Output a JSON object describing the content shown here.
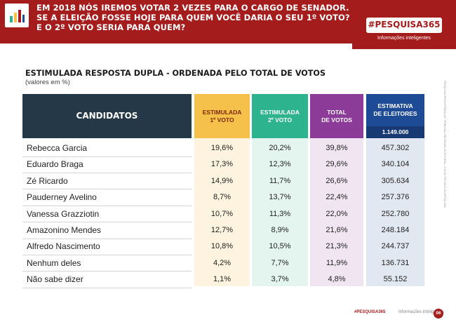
{
  "header": {
    "question_lines": [
      "EM 2018 NÓS IREMOS VOTAR 2 VEZES PARA O CARGO DE SENADOR.",
      "SE A ELEIÇÃO FOSSE HOJE PARA QUEM VOCÊ DARIA O SEU 1º VOTO?",
      "E O 2º VOTO SERIA PARA QUEM?"
    ],
    "icon": "bar-chart-icon",
    "band_color": "#a51c1c"
  },
  "brand": {
    "name": "#PESQUISA365",
    "tagline": "Informações inteligentes"
  },
  "table": {
    "title": "ESTIMULADA RESPOSTA DUPLA - ORDENADA PELO TOTAL DE VOTOS",
    "subtitle": "(valores em %)",
    "headers": {
      "candidates": "CANDIDATOS",
      "est1_line1": "ESTIMULADA",
      "est1_line2": "1º VOTO",
      "est2_line1": "ESTIMULADA",
      "est2_line2": "2º VOTO",
      "total_line1": "TOTAL",
      "total_line2": "DE VOTOS",
      "estim_line1": "ESTIMATIVA",
      "estim_line2": "DE ELEITORES",
      "electorate": "1.149.000"
    },
    "rows": [
      {
        "name": "Rebecca Garcia",
        "est1": "19,6%",
        "est2": "20,2%",
        "total": "39,8%",
        "estimate": "457.302"
      },
      {
        "name": "Eduardo Braga",
        "est1": "17,3%",
        "est2": "12,3%",
        "total": "29,6%",
        "estimate": "340.104"
      },
      {
        "name": "Zé Ricardo",
        "est1": "14,9%",
        "est2": "11,7%",
        "total": "26,6%",
        "estimate": "305.634"
      },
      {
        "name": "Pauderney Avelino",
        "est1": "8,7%",
        "est2": "13,7%",
        "total": "22,4%",
        "estimate": "257.376"
      },
      {
        "name": "Vanessa Grazziotin",
        "est1": "10,7%",
        "est2": "11,3%",
        "total": "22,0%",
        "estimate": "252.780"
      },
      {
        "name": "Amazonino Mendes",
        "est1": "12,7%",
        "est2": "8,9%",
        "total": "21,6%",
        "estimate": "248.184"
      },
      {
        "name": "Alfredo Nascimento",
        "est1": "10,8%",
        "est2": "10,5%",
        "total": "21,3%",
        "estimate": "244.737"
      },
      {
        "name": "Nenhum deles",
        "est1": "4,2%",
        "est2": "7,7%",
        "total": "11,9%",
        "estimate": "136.731"
      },
      {
        "name": "Não sabe dizer",
        "est1": "1,1%",
        "est2": "3,7%",
        "total": "4,8%",
        "estimate": "55.152"
      }
    ],
    "column_colors": {
      "candidates": "#243848",
      "est1": "#f5c14a",
      "est2": "#2db38e",
      "total": "#8c3b99",
      "estimate": "#1e4b95"
    }
  },
  "side_note": "PESQUISA REGISTRADA NO TRIBUNAL REGIONAL ELEITORAL - FICHA TÉCNICA DA PESQUISA",
  "footer": {
    "brand": "#PESQUISA365",
    "tagline": "Informações inteligentes",
    "page": "06"
  }
}
